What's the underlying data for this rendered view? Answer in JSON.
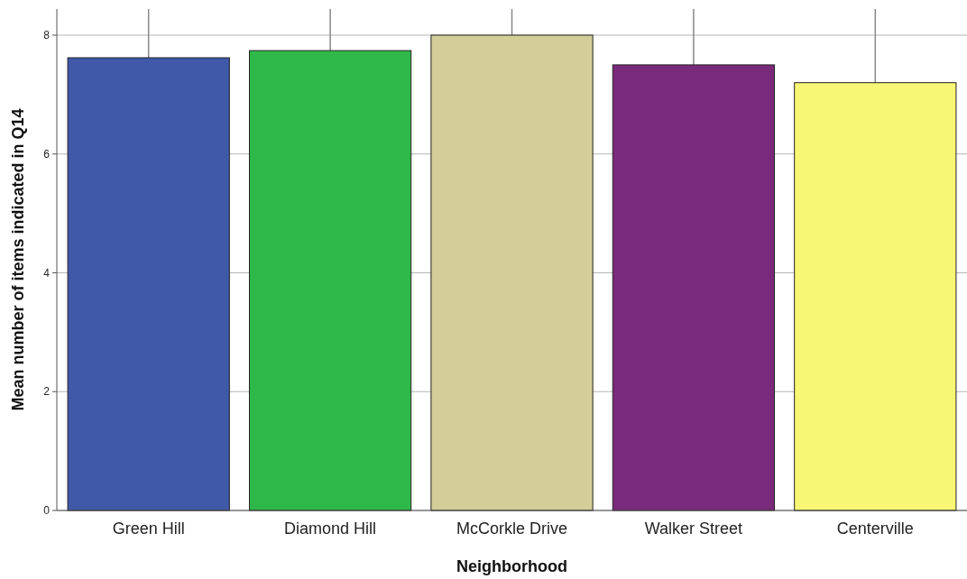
{
  "chart_data": {
    "type": "bar",
    "xlabel": "Neighborhood",
    "ylabel": "Mean number of items indicated in Q14",
    "categories": [
      "Green Hill",
      "Diamond Hill",
      "McCorkle Drive",
      "Walker Street",
      "Centerville"
    ],
    "values": [
      7.62,
      7.74,
      8.0,
      7.5,
      7.2
    ],
    "colors": [
      "#3f58a8",
      "#2fb84a",
      "#d3cd98",
      "#7a2a7a",
      "#f8f775"
    ],
    "errors": [
      [
        7.62,
        8.44
      ],
      [
        7.74,
        8.44
      ],
      [
        8.0,
        8.44
      ],
      [
        7.5,
        8.44
      ],
      [
        7.2,
        8.44
      ]
    ],
    "ylim": [
      0,
      8.44
    ],
    "yticks": [
      0,
      2,
      4,
      6,
      8
    ],
    "grid": "y"
  }
}
